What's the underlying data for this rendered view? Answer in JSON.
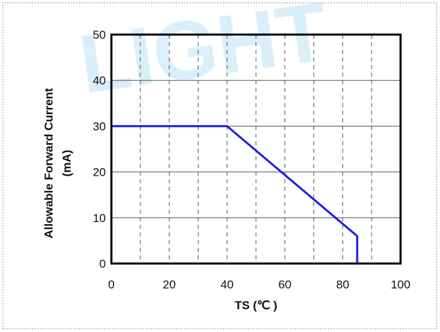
{
  "chart_data": {
    "type": "line",
    "title": "",
    "xlabel": "TS (℃ )",
    "ylabel": [
      "Allowable Forward Current",
      "(mA)"
    ],
    "xlim": [
      0,
      100
    ],
    "ylim": [
      0,
      50
    ],
    "x_ticks": [
      0,
      20,
      40,
      60,
      80,
      100
    ],
    "y_ticks": [
      0,
      10,
      20,
      30,
      40,
      50
    ],
    "grid": {
      "vertical_minor": "dashed",
      "horizontal": "solid"
    },
    "series": [
      {
        "color": "#1f1fe0",
        "points": [
          [
            0,
            30
          ],
          [
            40,
            30
          ],
          [
            85,
            6
          ],
          [
            85,
            0
          ]
        ]
      }
    ],
    "watermark": "LIGHT"
  }
}
